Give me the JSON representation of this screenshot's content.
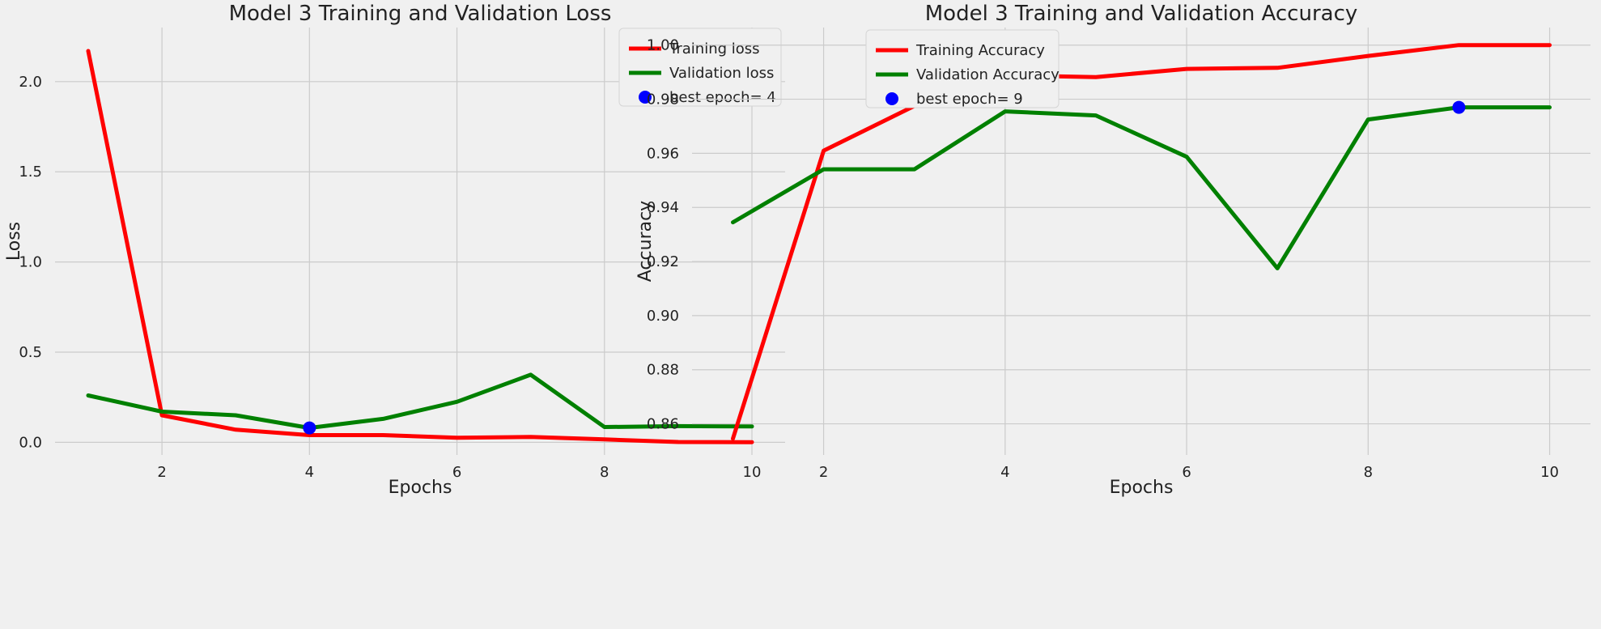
{
  "chart_data": [
    {
      "type": "line",
      "title": "Model 3 Training and Validation Loss",
      "xlabel": "Epochs",
      "ylabel": "Loss",
      "xlim": [
        0.55,
        10.45
      ],
      "ylim": [
        -0.07,
        2.3
      ],
      "xticks": [
        2,
        4,
        6,
        8,
        10
      ],
      "yticks": [
        0.0,
        0.5,
        1.0,
        1.5,
        2.0
      ],
      "xtick_labels": [
        "2",
        "4",
        "6",
        "8",
        "10"
      ],
      "ytick_labels": [
        "0.0",
        "0.5",
        "1.0",
        "1.5",
        "2.0"
      ],
      "grid": true,
      "legend_position": "top-right",
      "x": [
        1,
        2,
        3,
        4,
        5,
        6,
        7,
        8,
        9,
        10
      ],
      "series": [
        {
          "name": "Training loss",
          "color": "#ff0000",
          "values": [
            2.17,
            0.15,
            0.07,
            0.04,
            0.04,
            0.025,
            0.03,
            0.016,
            0.002,
            0.001
          ]
        },
        {
          "name": "Validation loss",
          "color": "#008000",
          "values": [
            0.26,
            0.17,
            0.15,
            0.08,
            0.13,
            0.225,
            0.375,
            0.085,
            0.09,
            0.088
          ]
        }
      ],
      "best_point": {
        "label": "best epoch= 4",
        "x": 4,
        "y": 0.08,
        "color": "#0000ff"
      }
    },
    {
      "type": "line",
      "title": "Model 3 Training and Validation Accuracy",
      "xlabel": "Epochs",
      "ylabel": "Accuracy",
      "xlim": [
        0.55,
        10.45
      ],
      "ylim": [
        0.8485,
        1.0065
      ],
      "xticks": [
        2,
        4,
        6,
        8,
        10
      ],
      "yticks": [
        0.86,
        0.88,
        0.9,
        0.92,
        0.94,
        0.96,
        0.98,
        1.0
      ],
      "xtick_labels": [
        "2",
        "4",
        "6",
        "8",
        "10"
      ],
      "ytick_labels": [
        "0.86",
        "0.88",
        "0.90",
        "0.92",
        "0.94",
        "0.96",
        "0.98",
        "1.00"
      ],
      "grid": true,
      "legend_position": "top-left",
      "x": [
        1,
        2,
        3,
        4,
        5,
        6,
        7,
        8,
        9,
        10
      ],
      "series": [
        {
          "name": "Training Accuracy",
          "color": "#ff0000",
          "values": [
            0.8545,
            0.961,
            0.9775,
            0.9888,
            0.9882,
            0.9912,
            0.9916,
            0.996,
            1.0,
            1.0
          ]
        },
        {
          "name": "Validation Accuracy",
          "color": "#008000",
          "values": [
            0.9345,
            0.9541,
            0.9541,
            0.9755,
            0.974,
            0.9587,
            0.9175,
            0.9725,
            0.977,
            0.977
          ]
        }
      ],
      "best_point": {
        "label": "best epoch= 9",
        "x": 9,
        "y": 0.977,
        "color": "#0000ff"
      }
    }
  ]
}
